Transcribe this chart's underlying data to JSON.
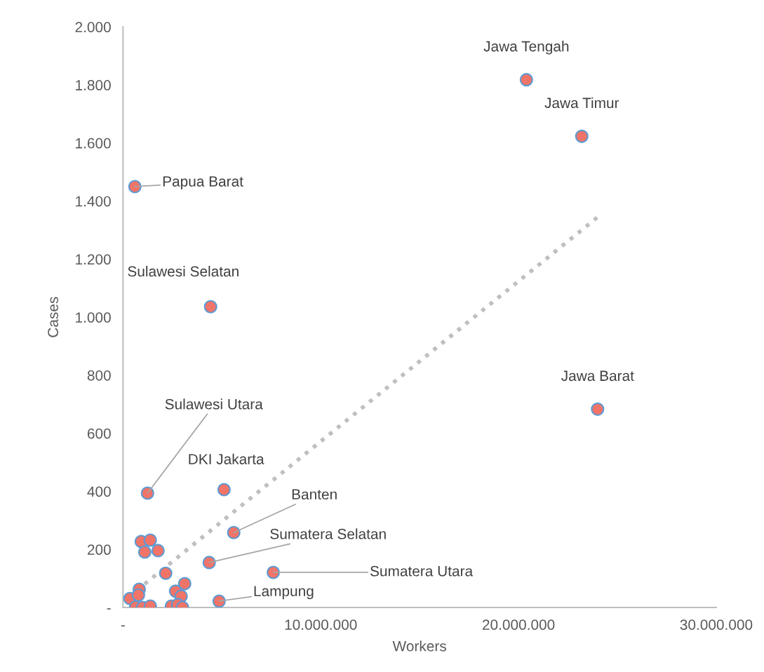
{
  "chart_data": {
    "type": "scatter",
    "xlabel": "Workers",
    "ylabel": "Cases",
    "xlim": [
      0,
      30000000
    ],
    "ylim": [
      0,
      2000
    ],
    "xticks": [
      {
        "value": 0,
        "label": "-"
      },
      {
        "value": 10000000,
        "label": "10.000.000"
      },
      {
        "value": 20000000,
        "label": "20.000.000"
      },
      {
        "value": 30000000,
        "label": "30.000.000"
      }
    ],
    "yticks": [
      {
        "value": 0,
        "label": "-"
      },
      200,
      400,
      600,
      800,
      {
        "value": 1000,
        "label": "1.000"
      },
      {
        "value": 1200,
        "label": "1.200"
      },
      {
        "value": 1400,
        "label": "1.400"
      },
      {
        "value": 1600,
        "label": "1.600"
      },
      {
        "value": 1800,
        "label": "1.800"
      },
      {
        "value": 2000,
        "label": "2.000"
      }
    ],
    "grid": false,
    "legend": false,
    "marker": "circle",
    "series": [
      {
        "color": "#f07468",
        "x": [
          20400000,
          23200000,
          600000,
          4430000,
          24000000,
          1240000,
          5110000,
          5600000,
          4360000,
          7600000,
          4860000,
          920000,
          1380000,
          1100000,
          1770000,
          2160000,
          820000,
          350000,
          780000,
          640000,
          990000,
          1380000,
          3120000,
          2660000,
          2940000,
          2450000,
          2770000,
          3010000
        ],
        "values": [
          1818,
          1623,
          1450,
          1036,
          683,
          394,
          406,
          258,
          155,
          121,
          22,
          227,
          232,
          191,
          196,
          118,
          63,
          31,
          43,
          2,
          0,
          5,
          82,
          56,
          39,
          5,
          10,
          0
        ]
      },
      {
        "type": "line",
        "color": "#bfbfbf",
        "line_style": "dotted",
        "marker": "none",
        "x": [
          280000,
          24100000
        ],
        "values": [
          36,
          1350
        ]
      }
    ],
    "annotations": [
      {
        "text": "Jawa Tengah",
        "x": 20400000,
        "y": 1818
      },
      {
        "text": "Jawa Timur",
        "x": 23200000,
        "y": 1623
      },
      {
        "text": "Papua Barat",
        "x": 600000,
        "y": 1450
      },
      {
        "text": "Sulawesi Selatan",
        "x": 4430000,
        "y": 1036
      },
      {
        "text": "Jawa Barat",
        "x": 24000000,
        "y": 683
      },
      {
        "text": "Sulawesi Utara",
        "x": 1240000,
        "y": 394
      },
      {
        "text": "DKI Jakarta",
        "x": 5110000,
        "y": 406
      },
      {
        "text": "Banten",
        "x": 5600000,
        "y": 258
      },
      {
        "text": "Sumatera Selatan",
        "x": 4360000,
        "y": 155
      },
      {
        "text": "Sumatera Utara",
        "x": 7600000,
        "y": 121
      },
      {
        "text": "Lampung",
        "x": 4860000,
        "y": 22
      }
    ]
  }
}
